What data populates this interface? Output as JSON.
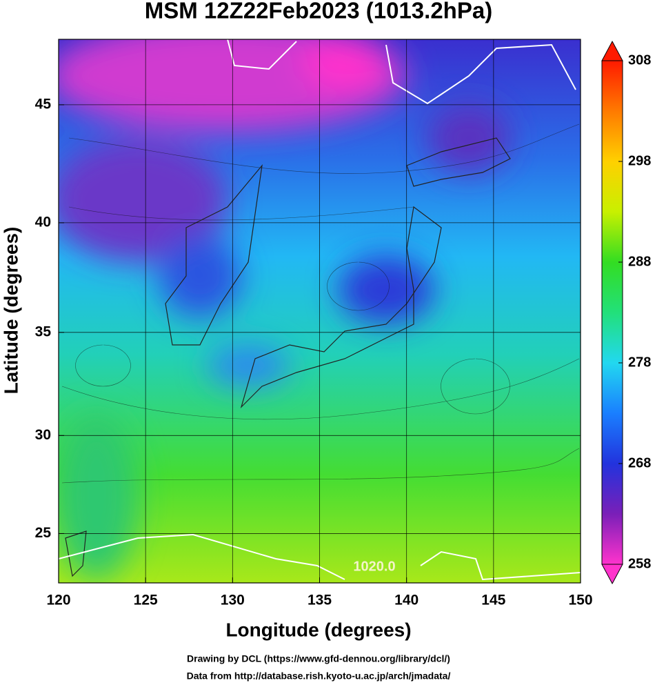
{
  "chart_data": {
    "type": "map",
    "title": "MSM 12Z22Feb2023 (1013.2hPa)",
    "xlabel": "Longitude (degrees)",
    "ylabel": "Latitude  (degrees)",
    "projection": "mercator",
    "xlim": [
      120,
      150
    ],
    "xticks": [
      120,
      125,
      130,
      135,
      140,
      145,
      150
    ],
    "ylim": [
      22.4,
      47.6
    ],
    "yticks": [
      25,
      30,
      35,
      40,
      45
    ],
    "grid": true,
    "colorbar": {
      "lim": [
        258,
        308
      ],
      "ticks": [
        258,
        268,
        278,
        288,
        298,
        308
      ],
      "colors": [
        "#ff33cc",
        "#7a1fb8",
        "#2233dd",
        "#1a7fff",
        "#22d8f0",
        "#22e07a",
        "#33dd22",
        "#c8f000",
        "#ffd000",
        "#ff7a00",
        "#ff1a00"
      ]
    },
    "annotations": [
      "1020.0"
    ],
    "footer": [
      "Drawing by DCL (https://www.gfd-dennou.org/library/dcl/)",
      "Data from http://database.rish.kyoto-u.ac.jp/arch/jmadata/"
    ]
  }
}
